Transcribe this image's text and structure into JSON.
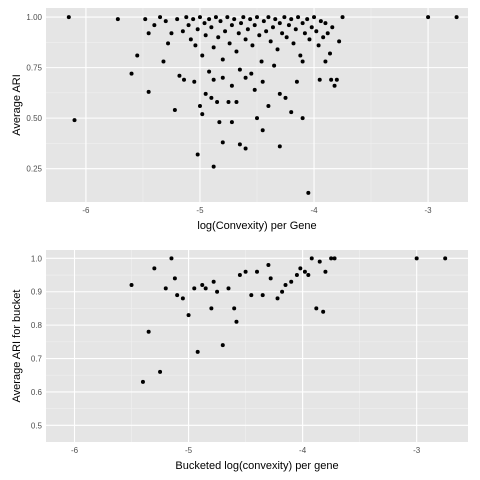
{
  "colors": {
    "panel": "#e5e5e5",
    "grid_major": "#ffffff",
    "grid_minor": "#f0f0f0",
    "point": "#000000"
  },
  "chart_data": [
    {
      "type": "scatter",
      "xlabel": "log(Convexity) per Gene",
      "ylabel": "Average ARI",
      "xlim": [
        -6.35,
        -2.65
      ],
      "ylim": [
        0.085,
        1.045
      ],
      "xticks": [
        -6,
        -5,
        -4,
        -3
      ],
      "yticks": [
        0.25,
        0.5,
        0.75,
        1.0
      ],
      "xtick_labels": [
        "-6",
        "-5",
        "-4",
        "-3"
      ],
      "ytick_labels": [
        "0.25",
        "0.50",
        "0.75",
        "1.00"
      ],
      "grid": true,
      "points": [
        [
          -6.15,
          1.0
        ],
        [
          -6.1,
          0.49
        ],
        [
          -5.72,
          0.99
        ],
        [
          -3.0,
          1.0
        ],
        [
          -2.75,
          1.0
        ],
        [
          -5.48,
          0.99
        ],
        [
          -5.45,
          0.92
        ],
        [
          -5.4,
          0.96
        ],
        [
          -5.35,
          1.0
        ],
        [
          -5.3,
          0.98
        ],
        [
          -5.25,
          0.92
        ],
        [
          -5.2,
          0.99
        ],
        [
          -5.15,
          0.93
        ],
        [
          -5.12,
          1.0
        ],
        [
          -5.1,
          0.96
        ],
        [
          -5.08,
          0.89
        ],
        [
          -5.06,
          0.99
        ],
        [
          -5.04,
          0.86
        ],
        [
          -5.02,
          0.94
        ],
        [
          -5.0,
          1.0
        ],
        [
          -4.98,
          0.81
        ],
        [
          -4.96,
          0.97
        ],
        [
          -4.95,
          0.91
        ],
        [
          -4.92,
          0.99
        ],
        [
          -4.9,
          0.95
        ],
        [
          -4.88,
          0.85
        ],
        [
          -4.86,
          1.0
        ],
        [
          -4.84,
          0.9
        ],
        [
          -4.82,
          0.98
        ],
        [
          -4.8,
          0.79
        ],
        [
          -4.78,
          0.93
        ],
        [
          -4.76,
          1.0
        ],
        [
          -4.74,
          0.87
        ],
        [
          -4.72,
          0.96
        ],
        [
          -4.7,
          0.99
        ],
        [
          -4.68,
          0.83
        ],
        [
          -4.66,
          0.92
        ],
        [
          -4.64,
          0.97
        ],
        [
          -4.62,
          1.0
        ],
        [
          -4.6,
          0.89
        ],
        [
          -4.58,
          0.94
        ],
        [
          -4.56,
          0.99
        ],
        [
          -4.54,
          0.86
        ],
        [
          -4.52,
          0.96
        ],
        [
          -4.5,
          1.0
        ],
        [
          -4.48,
          0.91
        ],
        [
          -4.46,
          0.78
        ],
        [
          -4.44,
          0.98
        ],
        [
          -4.42,
          0.93
        ],
        [
          -4.4,
          1.0
        ],
        [
          -4.38,
          0.88
        ],
        [
          -4.36,
          0.95
        ],
        [
          -4.34,
          0.99
        ],
        [
          -4.32,
          0.84
        ],
        [
          -4.3,
          0.97
        ],
        [
          -4.28,
          0.92
        ],
        [
          -4.26,
          1.0
        ],
        [
          -4.24,
          0.9
        ],
        [
          -4.22,
          0.96
        ],
        [
          -4.2,
          0.99
        ],
        [
          -4.18,
          0.87
        ],
        [
          -4.16,
          0.94
        ],
        [
          -4.14,
          1.0
        ],
        [
          -4.12,
          0.81
        ],
        [
          -4.1,
          0.97
        ],
        [
          -4.08,
          0.92
        ],
        [
          -4.06,
          0.99
        ],
        [
          -4.04,
          0.89
        ],
        [
          -4.02,
          0.95
        ],
        [
          -4.0,
          1.0
        ],
        [
          -3.98,
          0.93
        ],
        [
          -3.96,
          0.86
        ],
        [
          -3.94,
          0.98
        ],
        [
          -3.92,
          0.9
        ],
        [
          -3.9,
          0.97
        ],
        [
          -3.88,
          0.92
        ],
        [
          -3.86,
          0.82
        ],
        [
          -3.84,
          0.95
        ],
        [
          -3.82,
          0.66
        ],
        [
          -3.8,
          0.69
        ],
        [
          -3.78,
          0.88
        ],
        [
          -3.75,
          1.0
        ],
        [
          -5.32,
          0.78
        ],
        [
          -5.28,
          0.87
        ],
        [
          -5.22,
          0.54
        ],
        [
          -5.18,
          0.71
        ],
        [
          -5.14,
          0.69
        ],
        [
          -5.05,
          0.68
        ],
        [
          -5.0,
          0.56
        ],
        [
          -4.98,
          0.52
        ],
        [
          -4.95,
          0.62
        ],
        [
          -4.92,
          0.73
        ],
        [
          -4.9,
          0.6
        ],
        [
          -4.88,
          0.69
        ],
        [
          -4.85,
          0.58
        ],
        [
          -4.83,
          0.48
        ],
        [
          -4.8,
          0.7
        ],
        [
          -4.75,
          0.58
        ],
        [
          -4.72,
          0.66
        ],
        [
          -4.68,
          0.58
        ],
        [
          -4.65,
          0.74
        ],
        [
          -4.6,
          0.7
        ],
        [
          -4.55,
          0.72
        ],
        [
          -4.52,
          0.64
        ],
        [
          -4.45,
          0.68
        ],
        [
          -4.4,
          0.56
        ],
        [
          -4.35,
          0.76
        ],
        [
          -4.3,
          0.62
        ],
        [
          -4.25,
          0.6
        ],
        [
          -4.2,
          0.53
        ],
        [
          -4.15,
          0.68
        ],
        [
          -4.1,
          0.78
        ],
        [
          -3.95,
          0.69
        ],
        [
          -3.9,
          0.78
        ],
        [
          -3.85,
          0.69
        ],
        [
          -5.45,
          0.63
        ],
        [
          -5.55,
          0.81
        ],
        [
          -5.6,
          0.72
        ],
        [
          -5.02,
          0.32
        ],
        [
          -4.88,
          0.26
        ],
        [
          -4.8,
          0.38
        ],
        [
          -4.65,
          0.37
        ],
        [
          -4.6,
          0.35
        ],
        [
          -4.5,
          0.5
        ],
        [
          -4.45,
          0.44
        ],
        [
          -4.05,
          0.13
        ],
        [
          -4.1,
          0.5
        ],
        [
          -4.3,
          0.36
        ],
        [
          -4.72,
          0.48
        ]
      ]
    },
    {
      "type": "scatter",
      "xlabel": "Bucketed log(convexity) per gene",
      "ylabel": "Average ARI for bucket",
      "xlim": [
        -6.25,
        -2.55
      ],
      "ylim": [
        0.45,
        1.025
      ],
      "xticks": [
        -6,
        -5,
        -4,
        -3
      ],
      "yticks": [
        0.5,
        0.6,
        0.7,
        0.8,
        0.9,
        1.0
      ],
      "xtick_labels": [
        "-6",
        "-5",
        "-4",
        "-3"
      ],
      "ytick_labels": [
        "0.5",
        "0.6",
        "0.7",
        "0.8",
        "0.9",
        "1.0"
      ],
      "grid": true,
      "points": [
        [
          -5.5,
          0.92
        ],
        [
          -5.4,
          0.63
        ],
        [
          -5.35,
          0.78
        ],
        [
          -5.3,
          0.97
        ],
        [
          -5.25,
          0.66
        ],
        [
          -5.2,
          0.91
        ],
        [
          -5.15,
          1.0
        ],
        [
          -5.12,
          0.94
        ],
        [
          -5.1,
          0.89
        ],
        [
          -5.05,
          0.88
        ],
        [
          -5.0,
          0.83
        ],
        [
          -4.95,
          0.91
        ],
        [
          -4.92,
          0.72
        ],
        [
          -4.88,
          0.92
        ],
        [
          -4.85,
          0.91
        ],
        [
          -4.8,
          0.85
        ],
        [
          -4.78,
          0.93
        ],
        [
          -4.75,
          0.9
        ],
        [
          -4.7,
          0.74
        ],
        [
          -4.65,
          0.91
        ],
        [
          -4.6,
          0.85
        ],
        [
          -4.58,
          0.81
        ],
        [
          -4.55,
          0.95
        ],
        [
          -4.5,
          0.96
        ],
        [
          -4.45,
          0.89
        ],
        [
          -4.4,
          0.96
        ],
        [
          -4.35,
          0.89
        ],
        [
          -4.3,
          0.98
        ],
        [
          -4.28,
          0.94
        ],
        [
          -4.22,
          0.88
        ],
        [
          -4.18,
          0.9
        ],
        [
          -4.15,
          0.92
        ],
        [
          -4.1,
          0.93
        ],
        [
          -4.05,
          0.95
        ],
        [
          -4.02,
          0.97
        ],
        [
          -3.98,
          0.96
        ],
        [
          -3.95,
          0.95
        ],
        [
          -3.92,
          1.0
        ],
        [
          -3.88,
          0.85
        ],
        [
          -3.85,
          0.99
        ],
        [
          -3.82,
          0.84
        ],
        [
          -3.8,
          0.96
        ],
        [
          -3.75,
          1.0
        ],
        [
          -3.72,
          1.0
        ],
        [
          -3.0,
          1.0
        ],
        [
          -2.75,
          1.0
        ]
      ]
    }
  ]
}
